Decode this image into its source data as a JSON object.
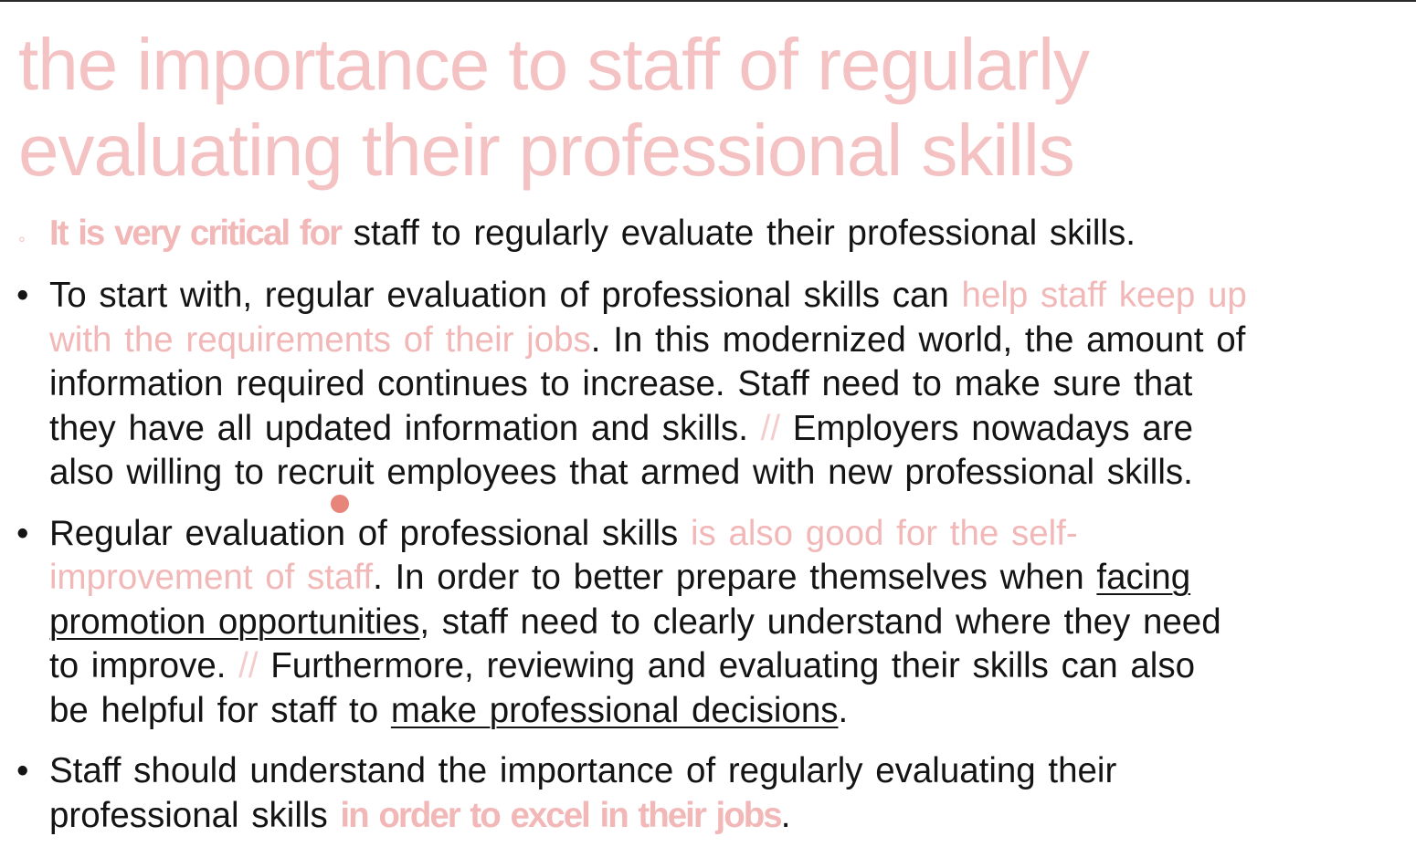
{
  "slide": {
    "title": "the importance to staff of regularly evaluating their professional skills",
    "bullets": [
      {
        "marker": "◦",
        "lines": [
          [
            {
              "t": "It is very critical for",
              "s": "pink-bold"
            },
            {
              "t": " staff to regularly evaluate their professional skills."
            }
          ]
        ]
      },
      {
        "marker": "•",
        "lines": [
          [
            {
              "t": "To start with, regular evaluation of professional skills can "
            },
            {
              "t": "help staff keep up",
              "s": "pink"
            }
          ],
          [
            {
              "t": "with the requirements of their jobs",
              "s": "pink"
            },
            {
              "t": ". In this modernized world, the amount of"
            }
          ],
          [
            {
              "t": "information required continues to increase. Staff need to make sure that"
            }
          ],
          [
            {
              "t": "they have all updated information and skills. "
            },
            {
              "t": "//",
              "s": "slash"
            },
            {
              "t": " Employers nowadays are"
            }
          ],
          [
            {
              "t": "also willing to recruit employees that armed with new professional skills."
            }
          ]
        ]
      },
      {
        "marker": "•",
        "lines": [
          [
            {
              "t": "Regular evaluation of professional skills "
            },
            {
              "t": "is also good for the self-",
              "s": "pink"
            }
          ],
          [
            {
              "t": "improvement of staff",
              "s": "pink"
            },
            {
              "t": ". In order to better prepare themselves when "
            },
            {
              "t": "facing",
              "s": "ul"
            }
          ],
          [
            {
              "t": "promotion opportunities",
              "s": "ul"
            },
            {
              "t": ", staff need to clearly understand where they need"
            }
          ],
          [
            {
              "t": "to improve.  "
            },
            {
              "t": "//",
              "s": "slash"
            },
            {
              "t": " Furthermore, reviewing and evaluating their skills can also"
            }
          ],
          [
            {
              "t": "be helpful for staff to "
            },
            {
              "t": "make professional decisions",
              "s": "ul"
            },
            {
              "t": "."
            }
          ]
        ]
      },
      {
        "marker": "•",
        "lines": [
          [
            {
              "t": "Staff should understand the importance of regularly evaluating their"
            }
          ],
          [
            {
              "t": "professional skills "
            },
            {
              "t": "in order to excel in their jobs",
              "s": "pink-bold"
            },
            {
              "t": "."
            }
          ]
        ]
      }
    ]
  }
}
